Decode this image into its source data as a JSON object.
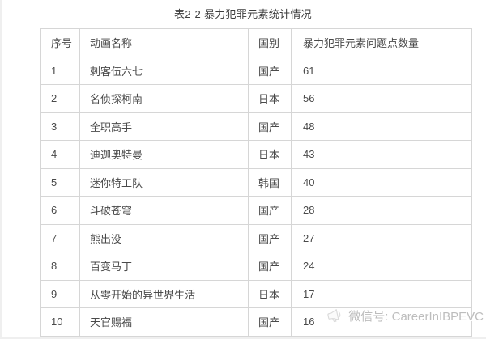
{
  "page": {
    "title": "表2-2 暴力犯罪元素统计情况"
  },
  "table": {
    "headers": [
      "序号",
      "动画名称",
      "国别",
      "暴力犯罪元素问题点数量"
    ],
    "rows": [
      {
        "no": "1",
        "name": "刺客伍六七",
        "country": "国产",
        "count": "61"
      },
      {
        "no": "2",
        "name": "名侦探柯南",
        "country": "日本",
        "count": "56"
      },
      {
        "no": "3",
        "name": "全职高手",
        "country": "国产",
        "count": "48"
      },
      {
        "no": "4",
        "name": "迪迦奥特曼",
        "country": "日本",
        "count": "43"
      },
      {
        "no": "5",
        "name": "迷你特工队",
        "country": "韩国",
        "count": "40"
      },
      {
        "no": "6",
        "name": "斗破苍穹",
        "country": "国产",
        "count": "28"
      },
      {
        "no": "7",
        "name": "熊出没",
        "country": "国产",
        "count": "27"
      },
      {
        "no": "8",
        "name": "百变马丁",
        "country": "国产",
        "count": "24"
      },
      {
        "no": "9",
        "name": "从零开始的异世界生活",
        "country": "日本",
        "count": "17"
      },
      {
        "no": "10",
        "name": "天官赐福",
        "country": "国产",
        "count": "16"
      }
    ]
  },
  "watermark": {
    "icon": "megaphone-icon",
    "text": "微信号: CareerInIBPEVC"
  },
  "colors": {
    "background": "#ffffff",
    "text": "#4a4a4a",
    "title_text": "#3d3d3d",
    "border": "#d6d6d6",
    "watermark_text": "#bdbdbd"
  }
}
